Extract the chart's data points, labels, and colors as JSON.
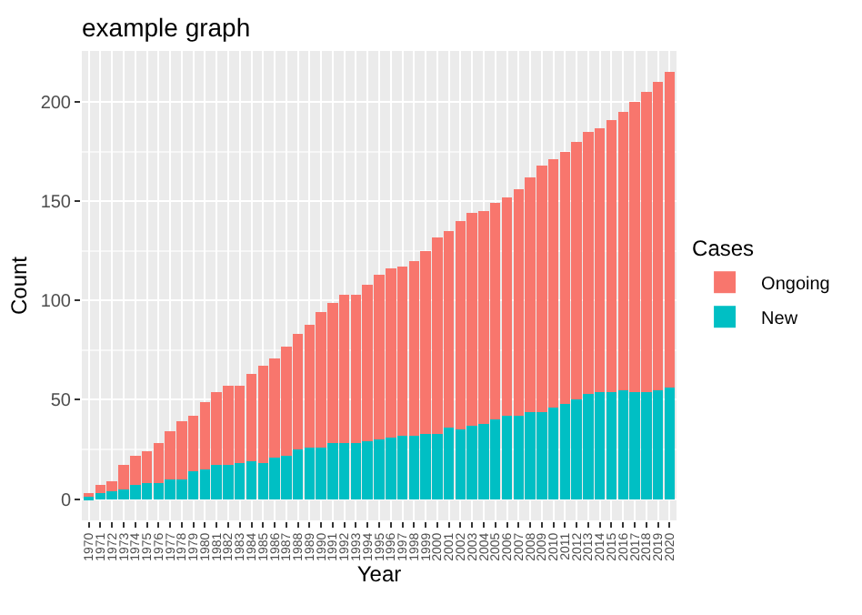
{
  "chart_data": {
    "type": "bar",
    "title": "example graph",
    "xlabel": "Year",
    "ylabel": "Count",
    "legend_title": "Cases",
    "categories": [
      "1970",
      "1971",
      "1972",
      "1973",
      "1974",
      "1975",
      "1976",
      "1977",
      "1978",
      "1979",
      "1980",
      "1981",
      "1982",
      "1983",
      "1984",
      "1985",
      "1986",
      "1987",
      "1988",
      "1989",
      "1990",
      "1991",
      "1992",
      "1993",
      "1994",
      "1995",
      "1996",
      "1997",
      "1998",
      "1999",
      "2000",
      "2001",
      "2002",
      "2003",
      "2004",
      "2005",
      "2006",
      "2007",
      "2008",
      "2009",
      "2010",
      "2011",
      "2012",
      "2013",
      "2014",
      "2015",
      "2016",
      "2017",
      "2018",
      "2019",
      "2020"
    ],
    "series": [
      {
        "name": "New",
        "color": "#00bfc4",
        "values": [
          1,
          3,
          4,
          5,
          7,
          8,
          8,
          10,
          10,
          14,
          15,
          17,
          17,
          18,
          19,
          18,
          21,
          22,
          25,
          26,
          26,
          28,
          28,
          28,
          29,
          30,
          31,
          32,
          32,
          33,
          33,
          36,
          35,
          37,
          38,
          40,
          42,
          42,
          44,
          44,
          46,
          48,
          50,
          53,
          54,
          54,
          55,
          54,
          54,
          55,
          56
        ]
      },
      {
        "name": "Ongoing",
        "color": "#f8766d",
        "values": [
          2,
          4,
          5,
          12,
          15,
          16,
          20,
          24,
          29,
          28,
          34,
          37,
          40,
          39,
          44,
          49,
          50,
          55,
          58,
          62,
          68,
          71,
          75,
          75,
          79,
          83,
          85,
          85,
          88,
          92,
          99,
          99,
          105,
          107,
          107,
          109,
          110,
          114,
          118,
          124,
          125,
          127,
          130,
          132,
          133,
          137,
          140,
          146,
          151,
          155,
          159
        ]
      }
    ],
    "stacked": true,
    "ylim": [
      -10.75,
      225.75
    ],
    "yticks": [
      0,
      50,
      100,
      150,
      200
    ],
    "grid": true,
    "legend": "right"
  }
}
